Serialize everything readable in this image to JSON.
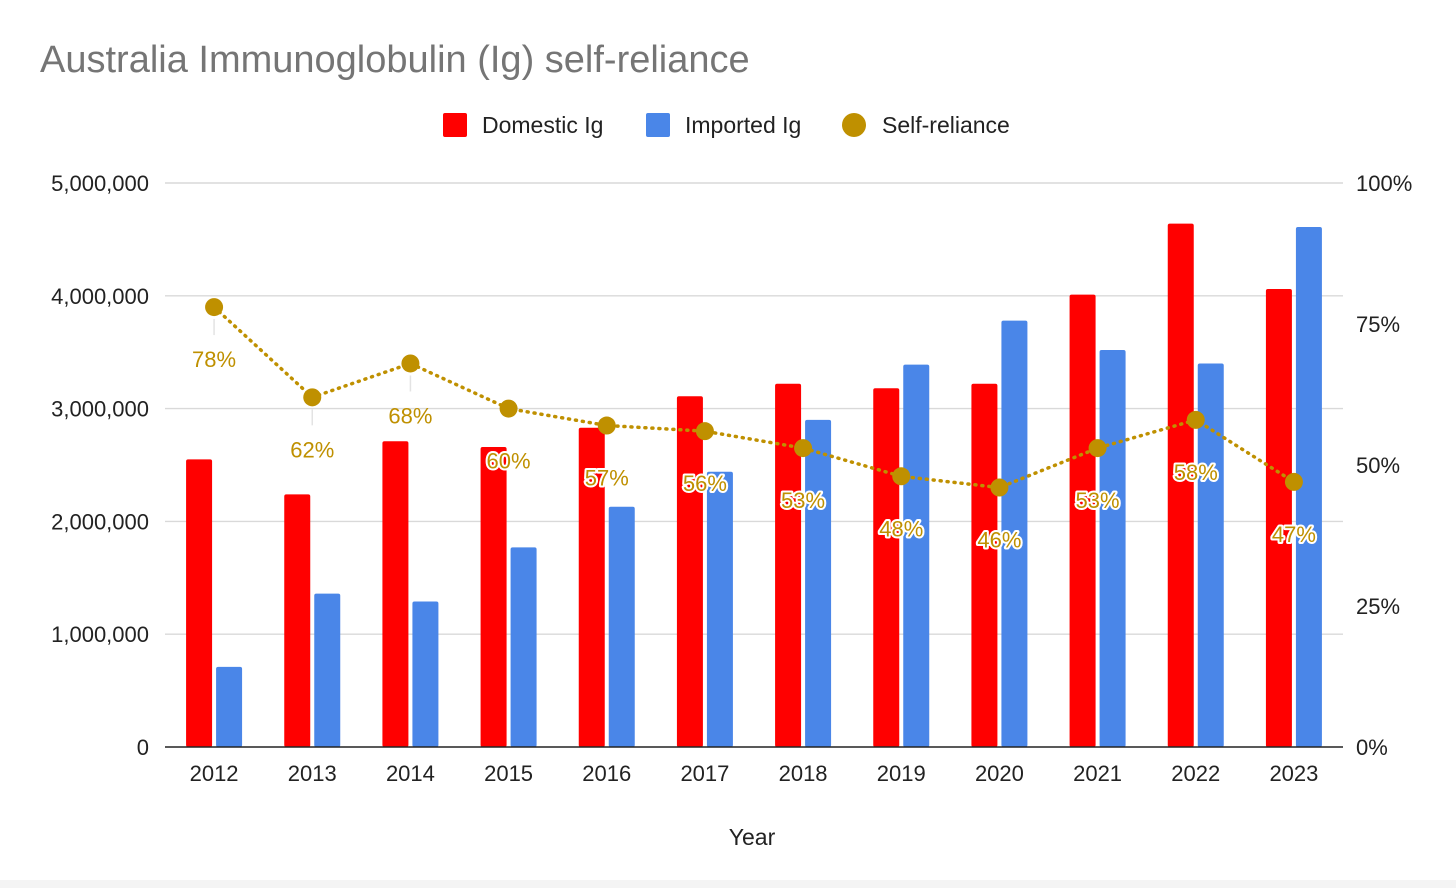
{
  "chart_data": {
    "type": "bar",
    "title": "Australia Immunoglobulin (Ig) self-reliance",
    "xlabel": "Year",
    "ylabel": "",
    "y2label": "",
    "categories": [
      "2012",
      "2013",
      "2014",
      "2015",
      "2016",
      "2017",
      "2018",
      "2019",
      "2020",
      "2021",
      "2022",
      "2023"
    ],
    "series": [
      {
        "name": "Domestic Ig",
        "type": "bar",
        "axis": "left",
        "color": "#ff0000",
        "values": [
          2550000,
          2240000,
          2710000,
          2660000,
          2830000,
          3110000,
          3220000,
          3180000,
          3220000,
          4010000,
          4640000,
          4060000
        ]
      },
      {
        "name": "Imported Ig",
        "type": "bar",
        "axis": "left",
        "color": "#4a86e8",
        "values": [
          710000,
          1360000,
          1290000,
          1770000,
          2130000,
          2440000,
          2900000,
          3390000,
          3780000,
          3520000,
          3400000,
          4610000
        ]
      },
      {
        "name": "Self-reliance",
        "type": "line",
        "axis": "right",
        "color": "#bf9000",
        "line_style": "dotted",
        "values": [
          78,
          62,
          68,
          60,
          57,
          56,
          53,
          48,
          46,
          53,
          58,
          47
        ],
        "labels": [
          "78%",
          "62%",
          "68%",
          "60%",
          "57%",
          "56%",
          "53%",
          "48%",
          "46%",
          "53%",
          "58%",
          "47%"
        ]
      }
    ],
    "ylim": [
      0,
      5000000
    ],
    "y_ticks": [
      "0",
      "1,000,000",
      "2,000,000",
      "3,000,000",
      "4,000,000",
      "5,000,000"
    ],
    "y2lim": [
      0,
      100
    ],
    "y2_ticks": [
      "0%",
      "25%",
      "50%",
      "75%",
      "100%"
    ],
    "grid": true,
    "legend_position": "top"
  }
}
